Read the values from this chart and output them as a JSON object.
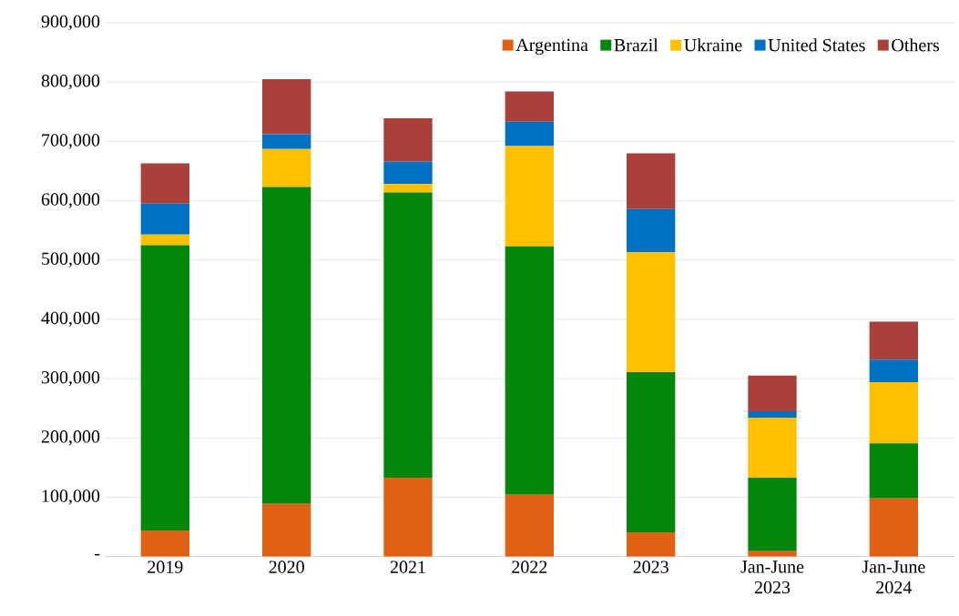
{
  "chart_data": {
    "type": "bar",
    "stacked": true,
    "categories": [
      "2019",
      "2020",
      "2021",
      "2022",
      "2023",
      "Jan-June 2023",
      "Jan-June 2024"
    ],
    "series": [
      {
        "name": "Argentina",
        "color": "#e06014",
        "values": [
          44000,
          89000,
          133000,
          104000,
          41000,
          9000,
          98000
        ]
      },
      {
        "name": "Brazil",
        "color": "#03860a",
        "values": [
          481000,
          534000,
          481000,
          419000,
          270000,
          124000,
          93000
        ]
      },
      {
        "name": "Ukraine",
        "color": "#ffc000",
        "values": [
          18000,
          64000,
          14000,
          169000,
          202000,
          101000,
          103000
        ]
      },
      {
        "name": "United States",
        "color": "#0070c0",
        "values": [
          52000,
          25000,
          38000,
          41000,
          73000,
          11000,
          38000
        ]
      },
      {
        "name": "Others",
        "color": "#a9403c",
        "values": [
          68000,
          93000,
          73000,
          51000,
          94000,
          60000,
          64000
        ]
      }
    ],
    "ylim": [
      0,
      900000
    ],
    "yticks": [
      {
        "value": 0,
        "label": "-"
      },
      {
        "value": 100000,
        "label": "100,000"
      },
      {
        "value": 200000,
        "label": "200,000"
      },
      {
        "value": 300000,
        "label": "300,000"
      },
      {
        "value": 400000,
        "label": "400,000"
      },
      {
        "value": 500000,
        "label": "500,000"
      },
      {
        "value": 600000,
        "label": "600,000"
      },
      {
        "value": 700000,
        "label": "700,000"
      },
      {
        "value": 800000,
        "label": "800,000"
      },
      {
        "value": 900000,
        "label": "900,000"
      }
    ],
    "grid": "y",
    "legend": "top right"
  }
}
